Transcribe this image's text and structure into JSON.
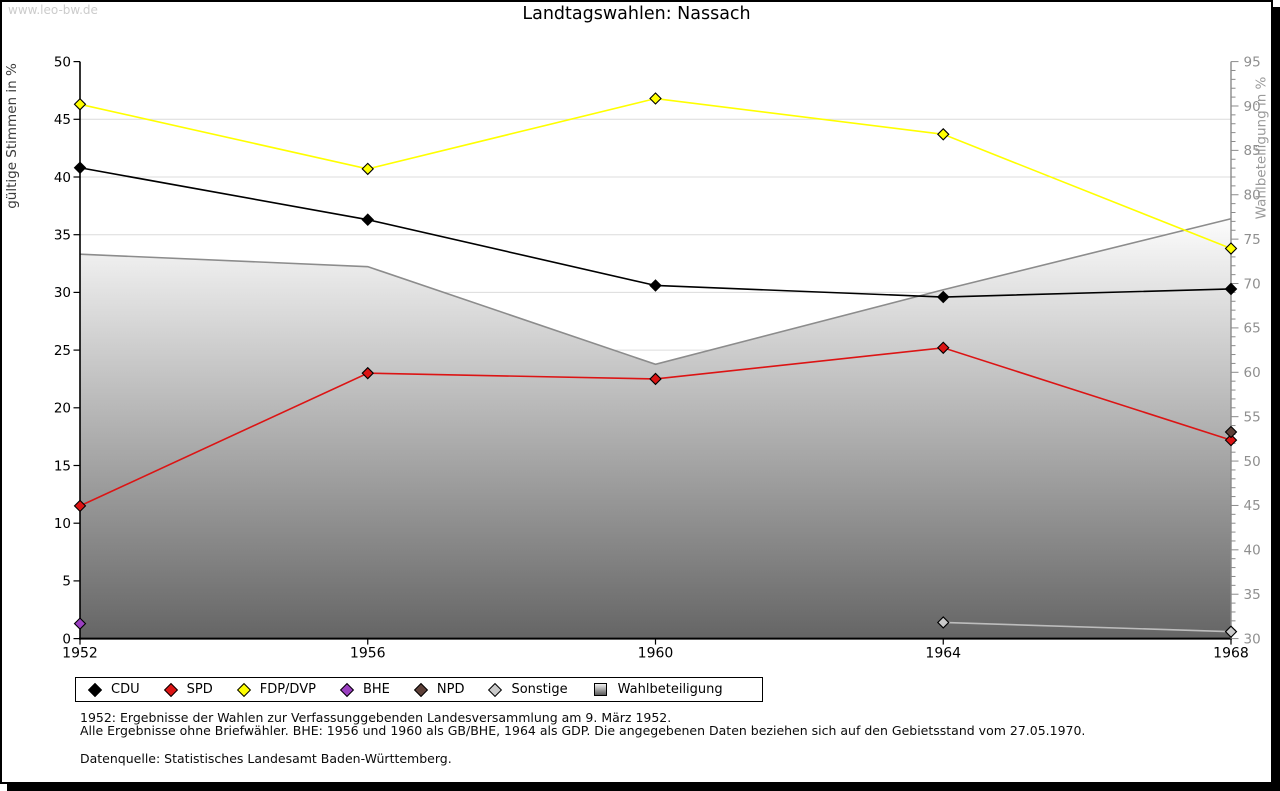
{
  "watermark": "www.leo-bw.de",
  "title": "Landtagswahlen: Nassach",
  "chart_data": {
    "type": "line",
    "title": "Landtagswahlen: Nassach",
    "x": [
      1952,
      1956,
      1960,
      1964,
      1968
    ],
    "left_axis": {
      "label": "gültige Stimmen in %",
      "min": 0,
      "max": 50,
      "tick_step": 5
    },
    "right_axis": {
      "label": "Wahlbeteiligung in %",
      "min": 30,
      "max": 95,
      "tick_step": 5,
      "minor_tick_step": 1
    },
    "grid": true,
    "legend_position": "bottom",
    "series": [
      {
        "name": "CDU",
        "axis": "left",
        "color": "#000000",
        "marker": "diamond",
        "values": [
          40.8,
          36.3,
          30.6,
          29.6,
          30.3
        ]
      },
      {
        "name": "SPD",
        "axis": "left",
        "color": "#dc1414",
        "marker": "diamond",
        "values": [
          11.5,
          23.0,
          22.5,
          25.2,
          17.2
        ]
      },
      {
        "name": "FDP/DVP",
        "axis": "left",
        "color": "#ffff00",
        "marker": "diamond",
        "values": [
          46.3,
          40.7,
          46.8,
          43.7,
          33.8
        ]
      },
      {
        "name": "BHE",
        "axis": "left",
        "color": "#9b3fc1",
        "marker": "diamond",
        "values": [
          1.3,
          null,
          null,
          null,
          null
        ]
      },
      {
        "name": "NPD",
        "axis": "left",
        "color": "#5d4038",
        "marker": "diamond",
        "values": [
          null,
          null,
          null,
          null,
          17.9
        ]
      },
      {
        "name": "Sonstige",
        "axis": "left",
        "color": "#c9c9c9",
        "line_color": "#bdbdbd",
        "marker": "diamond",
        "values": [
          null,
          null,
          null,
          1.4,
          0.6
        ]
      },
      {
        "name": "Wahlbeteiligung",
        "axis": "right",
        "type": "area",
        "color": "#8c8c8c",
        "fill_gradient": [
          "#fcfcfc",
          "#656565"
        ],
        "marker": "none",
        "values": [
          73.3,
          71.9,
          60.9,
          69.3,
          77.3
        ]
      }
    ]
  },
  "legend": {
    "items": [
      {
        "label": "CDU",
        "color": "#000000",
        "marker": "diamond"
      },
      {
        "label": "SPD",
        "color": "#dc1414",
        "marker": "diamond"
      },
      {
        "label": "FDP/DVP",
        "color": "#ffff00",
        "marker": "diamond"
      },
      {
        "label": "BHE",
        "color": "#9b3fc1",
        "marker": "diamond"
      },
      {
        "label": "NPD",
        "color": "#5d4038",
        "marker": "diamond"
      },
      {
        "label": "Sonstige",
        "color": "#c9c9c9",
        "marker": "diamond"
      },
      {
        "label": "Wahlbeteiligung",
        "color": "gradient",
        "marker": "gradient-square"
      }
    ]
  },
  "footnotes": {
    "line1": "1952: Ergebnisse der Wahlen zur Verfassunggebenden Landesversammlung am 9. März 1952.",
    "line2": "Alle Ergebnisse ohne Briefwähler. BHE: 1956 und 1960 als GB/BHE, 1964 als GDP. Die angegebenen Daten beziehen sich auf den Gebietsstand vom 27.05.1970.",
    "source": "Datenquelle: Statistisches Landesamt Baden-Württemberg."
  }
}
